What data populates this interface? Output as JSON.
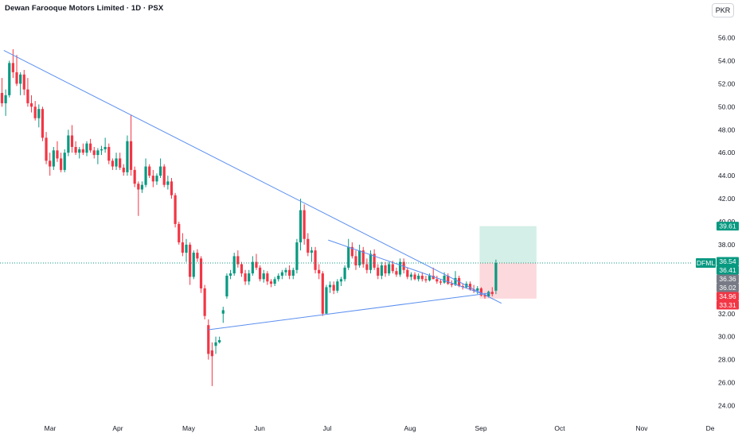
{
  "header": {
    "title": "Dewan Farooque Motors Limited · 1D · PSX",
    "currency": "PKR"
  },
  "colors": {
    "up": "#089981",
    "down": "#f23645",
    "trendline": "#5b8ff0",
    "profit_zone": "#d4efe7",
    "loss_zone": "#fbd9dc",
    "last_price_line": "#089981",
    "grey_tag": "#787b86"
  },
  "chart_data": {
    "type": "candlestick",
    "title": "Dewan Farooque Motors Limited · 1D · PSX",
    "y_ticks": [
      "56.00",
      "54.00",
      "52.00",
      "50.00",
      "48.00",
      "46.00",
      "44.00",
      "42.00",
      "40.00",
      "38.00",
      "36.00",
      "34.00",
      "32.00",
      "30.00",
      "28.00",
      "26.00",
      "24.00"
    ],
    "x_ticks": [
      "Mar",
      "Apr",
      "May",
      "Jun",
      "Jul",
      "Aug",
      "Sep",
      "Oct",
      "Nov",
      "De"
    ],
    "ylim": [
      23.0,
      58.0
    ],
    "symbol": "DFML",
    "last_price": 36.41,
    "price_tags": [
      {
        "value": 39.61,
        "label": "39.61",
        "color": "#089981"
      },
      {
        "value": 36.54,
        "label": "36.54",
        "color": "#089981"
      },
      {
        "value": 36.41,
        "label": "36.41",
        "color": "#089981"
      },
      {
        "value": 36.36,
        "label": "36.36",
        "color": "#787b86"
      },
      {
        "value": 36.02,
        "label": "36.02",
        "color": "#787b86"
      },
      {
        "value": 34.96,
        "label": "34.96",
        "color": "#f23645"
      },
      {
        "value": 33.31,
        "label": "33.31",
        "color": "#f23645"
      }
    ],
    "position_tool": {
      "start_day": 130,
      "end_day": 145,
      "entry": 36.41,
      "target": 39.61,
      "stop": 33.31
    },
    "trendlines": [
      {
        "x1": 0.5,
        "y1": 54.9,
        "x2": 135.5,
        "y2": 32.9
      },
      {
        "x1": 56,
        "y1": 30.6,
        "x2": 132.5,
        "y2": 33.8
      },
      {
        "x1": 88.5,
        "y1": 38.4,
        "x2": 131.5,
        "y2": 33.6
      }
    ],
    "candles": [
      [
        51.2,
        52.5,
        50.0,
        50.3
      ],
      [
        50.3,
        51.5,
        49.2,
        51.0
      ],
      [
        51.0,
        54.0,
        50.8,
        53.8
      ],
      [
        53.8,
        55.0,
        52.5,
        53.0
      ],
      [
        53.0,
        54.5,
        51.8,
        52.0
      ],
      [
        52.0,
        53.0,
        51.0,
        52.8
      ],
      [
        52.8,
        53.2,
        51.0,
        51.5
      ],
      [
        51.5,
        52.5,
        50.0,
        50.3
      ],
      [
        50.3,
        51.0,
        49.5,
        50.0
      ],
      [
        50.0,
        50.5,
        48.8,
        49.0
      ],
      [
        49.0,
        50.2,
        48.2,
        49.8
      ],
      [
        49.8,
        50.0,
        47.0,
        47.3
      ],
      [
        47.3,
        47.8,
        45.0,
        45.3
      ],
      [
        45.3,
        46.0,
        44.0,
        44.8
      ],
      [
        44.8,
        46.5,
        44.5,
        46.2
      ],
      [
        46.2,
        47.0,
        45.2,
        45.5
      ],
      [
        45.5,
        46.0,
        44.3,
        44.5
      ],
      [
        44.5,
        46.3,
        44.3,
        46.0
      ],
      [
        46.0,
        48.0,
        45.7,
        47.5
      ],
      [
        47.5,
        48.4,
        46.0,
        46.5
      ],
      [
        46.5,
        47.0,
        45.8,
        46.0
      ],
      [
        46.0,
        46.5,
        45.5,
        46.3
      ],
      [
        46.3,
        46.8,
        45.8,
        46.0
      ],
      [
        46.0,
        47.0,
        45.7,
        46.8
      ],
      [
        46.8,
        47.2,
        46.0,
        46.2
      ],
      [
        46.2,
        46.5,
        45.5,
        45.8
      ],
      [
        45.8,
        46.4,
        45.0,
        46.2
      ],
      [
        46.2,
        46.6,
        45.8,
        46.3
      ],
      [
        46.3,
        47.3,
        46.0,
        46.5
      ],
      [
        46.5,
        46.8,
        45.0,
        45.3
      ],
      [
        45.3,
        45.5,
        44.5,
        44.8
      ],
      [
        44.8,
        46.0,
        44.5,
        45.5
      ],
      [
        45.5,
        46.0,
        44.5,
        44.7
      ],
      [
        44.7,
        45.0,
        44.0,
        44.3
      ],
      [
        44.3,
        47.5,
        44.0,
        47.0
      ],
      [
        47.0,
        49.3,
        44.0,
        44.5
      ],
      [
        44.5,
        44.8,
        43.0,
        43.3
      ],
      [
        43.3,
        43.5,
        40.5,
        42.8
      ],
      [
        42.8,
        43.5,
        42.5,
        43.2
      ],
      [
        43.2,
        45.5,
        43.0,
        44.8
      ],
      [
        44.8,
        45.0,
        43.8,
        44.0
      ],
      [
        44.0,
        44.5,
        43.0,
        43.5
      ],
      [
        43.5,
        44.2,
        43.2,
        44.0
      ],
      [
        44.0,
        45.5,
        43.8,
        44.8
      ],
      [
        44.8,
        45.0,
        43.0,
        43.2
      ],
      [
        43.2,
        44.0,
        42.8,
        43.5
      ],
      [
        43.5,
        43.8,
        42.0,
        42.3
      ],
      [
        42.3,
        42.5,
        39.5,
        39.8
      ],
      [
        39.8,
        40.0,
        38.0,
        38.2
      ],
      [
        38.2,
        39.0,
        37.0,
        37.3
      ],
      [
        37.3,
        38.5,
        36.5,
        38.0
      ],
      [
        38.0,
        38.2,
        34.5,
        35.2
      ],
      [
        35.2,
        37.5,
        35.0,
        37.3
      ],
      [
        37.3,
        37.6,
        36.5,
        36.8
      ],
      [
        36.8,
        37.0,
        33.8,
        34.2
      ],
      [
        34.2,
        34.5,
        31.5,
        31.8
      ],
      [
        31.0,
        31.5,
        28.0,
        28.5
      ],
      [
        28.8,
        29.5,
        25.7,
        28.3
      ],
      [
        29.2,
        30.0,
        28.5,
        29.5
      ],
      [
        29.5,
        30.0,
        29.4,
        29.7
      ],
      [
        32.0,
        32.6,
        31.2,
        32.3
      ],
      [
        33.5,
        35.5,
        33.3,
        35.3
      ],
      [
        35.3,
        35.8,
        35.0,
        35.5
      ],
      [
        35.5,
        37.3,
        35.3,
        37.0
      ],
      [
        37.0,
        37.5,
        36.0,
        36.3
      ],
      [
        36.3,
        36.5,
        35.2,
        35.5
      ],
      [
        35.5,
        35.8,
        34.5,
        34.8
      ],
      [
        34.8,
        35.8,
        34.5,
        35.5
      ],
      [
        35.5,
        37.0,
        35.3,
        36.5
      ],
      [
        36.5,
        37.2,
        35.8,
        36.0
      ],
      [
        36.0,
        36.2,
        34.8,
        35.0
      ],
      [
        35.0,
        35.8,
        34.7,
        35.5
      ],
      [
        35.5,
        35.7,
        34.5,
        34.8
      ],
      [
        34.8,
        35.0,
        34.3,
        34.6
      ],
      [
        34.6,
        35.2,
        34.4,
        35.0
      ],
      [
        35.0,
        35.5,
        34.8,
        35.3
      ],
      [
        35.3,
        35.8,
        35.0,
        35.6
      ],
      [
        35.6,
        36.0,
        35.3,
        35.8
      ],
      [
        35.8,
        36.2,
        35.0,
        35.3
      ],
      [
        35.3,
        36.0,
        35.0,
        35.8
      ],
      [
        35.8,
        38.5,
        35.5,
        38.2
      ],
      [
        38.2,
        42.0,
        37.5,
        41.0
      ],
      [
        41.0,
        41.5,
        38.0,
        38.5
      ],
      [
        38.5,
        39.0,
        37.0,
        37.3
      ],
      [
        37.3,
        37.8,
        36.5,
        37.5
      ],
      [
        37.5,
        37.8,
        35.5,
        35.8
      ],
      [
        35.8,
        36.3,
        35.0,
        35.5
      ],
      [
        35.5,
        35.7,
        31.8,
        32.0
      ],
      [
        32.0,
        34.5,
        32.0,
        34.3
      ],
      [
        34.3,
        34.8,
        33.8,
        34.5
      ],
      [
        34.5,
        34.8,
        33.7,
        34.0
      ],
      [
        34.0,
        35.0,
        33.8,
        34.8
      ],
      [
        34.8,
        35.2,
        34.4,
        35.0
      ],
      [
        35.0,
        36.2,
        34.8,
        36.0
      ],
      [
        36.0,
        38.5,
        35.8,
        37.8
      ],
      [
        37.8,
        38.2,
        36.8,
        37.0
      ],
      [
        37.0,
        37.5,
        35.8,
        36.2
      ],
      [
        36.2,
        38.0,
        36.0,
        37.5
      ],
      [
        37.5,
        37.8,
        36.0,
        36.3
      ],
      [
        36.3,
        36.8,
        35.5,
        35.8
      ],
      [
        35.8,
        37.5,
        35.5,
        37.2
      ],
      [
        37.2,
        37.6,
        35.8,
        36.0
      ],
      [
        36.0,
        36.3,
        35.0,
        35.3
      ],
      [
        35.3,
        36.5,
        35.0,
        36.2
      ],
      [
        36.2,
        36.5,
        35.2,
        35.5
      ],
      [
        35.5,
        36.5,
        35.3,
        36.3
      ],
      [
        36.3,
        36.6,
        35.5,
        35.7
      ],
      [
        35.7,
        36.0,
        35.2,
        35.4
      ],
      [
        35.4,
        36.8,
        35.2,
        36.5
      ],
      [
        36.5,
        36.8,
        35.5,
        35.8
      ],
      [
        35.8,
        36.0,
        35.0,
        35.2
      ],
      [
        35.2,
        35.6,
        34.9,
        35.4
      ],
      [
        35.4,
        35.6,
        34.9,
        35.0
      ],
      [
        35.0,
        35.5,
        34.8,
        35.3
      ],
      [
        35.3,
        35.6,
        34.8,
        35.0
      ],
      [
        35.0,
        35.3,
        34.7,
        34.9
      ],
      [
        34.9,
        35.5,
        34.8,
        35.3
      ],
      [
        35.3,
        36.0,
        35.0,
        35.0
      ],
      [
        35.0,
        35.3,
        34.6,
        34.8
      ],
      [
        34.8,
        35.0,
        34.5,
        34.7
      ],
      [
        34.7,
        35.6,
        34.6,
        35.3
      ],
      [
        35.3,
        35.5,
        34.5,
        34.6
      ],
      [
        34.6,
        34.9,
        34.3,
        34.5
      ],
      [
        34.5,
        35.7,
        34.4,
        35.1
      ],
      [
        35.1,
        35.3,
        34.3,
        34.4
      ],
      [
        34.4,
        34.6,
        34.1,
        34.3
      ],
      [
        34.3,
        34.8,
        34.2,
        34.6
      ],
      [
        34.6,
        34.8,
        34.0,
        34.1
      ],
      [
        34.1,
        34.5,
        33.8,
        34.0
      ],
      [
        34.0,
        34.4,
        33.7,
        34.2
      ],
      [
        34.2,
        34.3,
        33.5,
        33.6
      ],
      [
        33.6,
        33.8,
        33.3,
        33.5
      ],
      [
        33.5,
        34.0,
        33.4,
        33.9
      ],
      [
        33.9,
        34.3,
        33.5,
        33.7
      ],
      [
        34.0,
        36.7,
        33.7,
        36.41
      ]
    ]
  }
}
